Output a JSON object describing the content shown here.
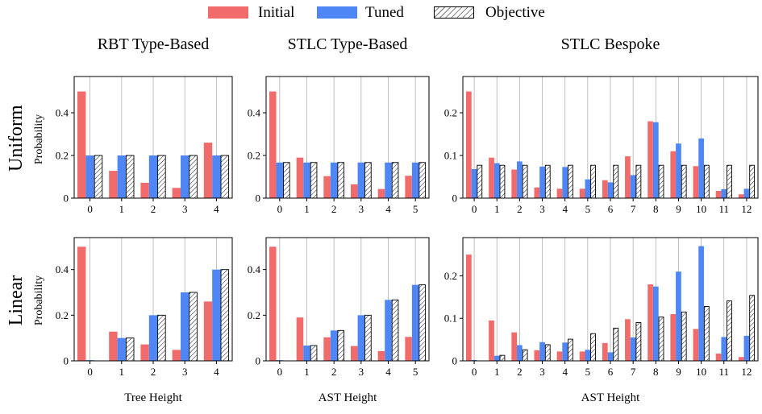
{
  "legend": {
    "items": [
      {
        "label": "Initial",
        "color": "#f26b6b"
      },
      {
        "label": "Tuned",
        "color": "#4f86f5"
      },
      {
        "label": "Objective",
        "pattern": "hatched"
      }
    ]
  },
  "columns": {
    "rbt": "RBT Type-Based",
    "stlc_type": "STLC Type-Based",
    "stlc_bespoke": "STLC Bespoke"
  },
  "rows": {
    "uniform": "Uniform",
    "linear": "Linear"
  },
  "y_axis_label": "Probability",
  "x_axis_labels": {
    "rbt": "Tree Height",
    "stlc_type": "AST Height",
    "stlc_bespoke": "AST Height"
  },
  "colors": {
    "initial": "#f26b6b",
    "tuned": "#4f86f5",
    "objective_fill": "#ffffff",
    "objective_stroke": "#000000"
  },
  "chart_data": [
    {
      "id": "uniform-rbt",
      "type": "bar",
      "title": "RBT Type-Based",
      "row": "Uniform",
      "ylabel": "Probability",
      "xlabel": "",
      "categories": [
        "0",
        "1",
        "2",
        "3",
        "4"
      ],
      "ylim": [
        0,
        0.57
      ],
      "yticks": [
        0,
        0.2,
        0.4
      ],
      "ytick_labels": [
        "0",
        "0.2",
        "0.4"
      ],
      "series": [
        {
          "name": "Initial",
          "values": [
            0.5,
            0.128,
            0.072,
            0.048,
            0.26
          ]
        },
        {
          "name": "Tuned",
          "values": [
            0.2,
            0.2,
            0.2,
            0.2,
            0.2
          ]
        },
        {
          "name": "Objective",
          "values": [
            0.2,
            0.2,
            0.2,
            0.2,
            0.2
          ]
        }
      ]
    },
    {
      "id": "uniform-stlc-type",
      "type": "bar",
      "title": "STLC Type-Based",
      "row": "Uniform",
      "ylabel": "",
      "xlabel": "",
      "categories": [
        "0",
        "1",
        "2",
        "3",
        "4",
        "5"
      ],
      "ylim": [
        0,
        0.57
      ],
      "yticks": [
        0,
        0.2,
        0.4
      ],
      "ytick_labels": [
        "0",
        "0.2",
        "0.4"
      ],
      "series": [
        {
          "name": "Initial",
          "values": [
            0.5,
            0.19,
            0.103,
            0.065,
            0.043,
            0.105
          ]
        },
        {
          "name": "Tuned",
          "values": [
            0.167,
            0.167,
            0.167,
            0.167,
            0.167,
            0.167
          ]
        },
        {
          "name": "Objective",
          "values": [
            0.167,
            0.167,
            0.167,
            0.167,
            0.167,
            0.167
          ]
        }
      ]
    },
    {
      "id": "uniform-stlc-bespoke",
      "type": "bar",
      "title": "STLC Bespoke",
      "row": "Uniform",
      "ylabel": "",
      "xlabel": "",
      "categories": [
        "0",
        "1",
        "2",
        "3",
        "4",
        "5",
        "6",
        "7",
        "8",
        "9",
        "10",
        "11",
        "12"
      ],
      "ylim": [
        0,
        0.285
      ],
      "yticks": [
        0,
        0.1,
        0.2
      ],
      "ytick_labels": [
        "0",
        "0.1",
        "0.2"
      ],
      "series": [
        {
          "name": "Initial",
          "values": [
            0.25,
            0.095,
            0.067,
            0.025,
            0.022,
            0.022,
            0.042,
            0.098,
            0.18,
            0.11,
            0.075,
            0.017,
            0.009
          ]
        },
        {
          "name": "Tuned",
          "values": [
            0.068,
            0.082,
            0.086,
            0.074,
            0.073,
            0.044,
            0.037,
            0.054,
            0.178,
            0.128,
            0.14,
            0.021,
            0.022
          ]
        },
        {
          "name": "Objective",
          "values": [
            0.077,
            0.077,
            0.077,
            0.077,
            0.077,
            0.077,
            0.077,
            0.077,
            0.077,
            0.077,
            0.077,
            0.077,
            0.077
          ]
        }
      ]
    },
    {
      "id": "linear-rbt",
      "type": "bar",
      "title": "",
      "row": "Linear",
      "ylabel": "Probability",
      "xlabel": "Tree Height",
      "categories": [
        "0",
        "1",
        "2",
        "3",
        "4"
      ],
      "ylim": [
        0,
        0.54
      ],
      "yticks": [
        0,
        0.2,
        0.4
      ],
      "ytick_labels": [
        "0",
        "0.2",
        "0.4"
      ],
      "series": [
        {
          "name": "Initial",
          "values": [
            0.5,
            0.128,
            0.072,
            0.048,
            0.26
          ]
        },
        {
          "name": "Tuned",
          "values": [
            0.003,
            0.1,
            0.2,
            0.3,
            0.4
          ]
        },
        {
          "name": "Objective",
          "values": [
            0,
            0.1,
            0.2,
            0.3,
            0.4
          ]
        }
      ]
    },
    {
      "id": "linear-stlc-type",
      "type": "bar",
      "title": "",
      "row": "Linear",
      "ylabel": "",
      "xlabel": "AST Height",
      "categories": [
        "0",
        "1",
        "2",
        "3",
        "4",
        "5"
      ],
      "ylim": [
        0,
        0.54
      ],
      "yticks": [
        0,
        0.2,
        0.4
      ],
      "ytick_labels": [
        "0",
        "0.2",
        "0.4"
      ],
      "series": [
        {
          "name": "Initial",
          "values": [
            0.5,
            0.19,
            0.103,
            0.065,
            0.043,
            0.105
          ]
        },
        {
          "name": "Tuned",
          "values": [
            0.003,
            0.067,
            0.133,
            0.2,
            0.267,
            0.333
          ]
        },
        {
          "name": "Objective",
          "values": [
            0,
            0.067,
            0.133,
            0.2,
            0.267,
            0.333
          ]
        }
      ]
    },
    {
      "id": "linear-stlc-bespoke",
      "type": "bar",
      "title": "",
      "row": "Linear",
      "ylabel": "",
      "xlabel": "AST Height",
      "categories": [
        "0",
        "1",
        "2",
        "3",
        "4",
        "5",
        "6",
        "7",
        "8",
        "9",
        "10",
        "11",
        "12"
      ],
      "ylim": [
        0,
        0.29
      ],
      "yticks": [
        0,
        0.1,
        0.2
      ],
      "ytick_labels": [
        "0",
        "0.1",
        "0.2"
      ],
      "series": [
        {
          "name": "Initial",
          "values": [
            0.25,
            0.095,
            0.067,
            0.025,
            0.022,
            0.022,
            0.042,
            0.098,
            0.18,
            0.11,
            0.075,
            0.017,
            0.009
          ]
        },
        {
          "name": "Tuned",
          "values": [
            0.002,
            0.012,
            0.037,
            0.044,
            0.043,
            0.026,
            0.02,
            0.055,
            0.175,
            0.21,
            0.27,
            0.056,
            0.059
          ]
        },
        {
          "name": "Objective",
          "values": [
            0,
            0.013,
            0.026,
            0.038,
            0.051,
            0.064,
            0.077,
            0.09,
            0.103,
            0.115,
            0.128,
            0.141,
            0.154
          ]
        }
      ]
    }
  ]
}
